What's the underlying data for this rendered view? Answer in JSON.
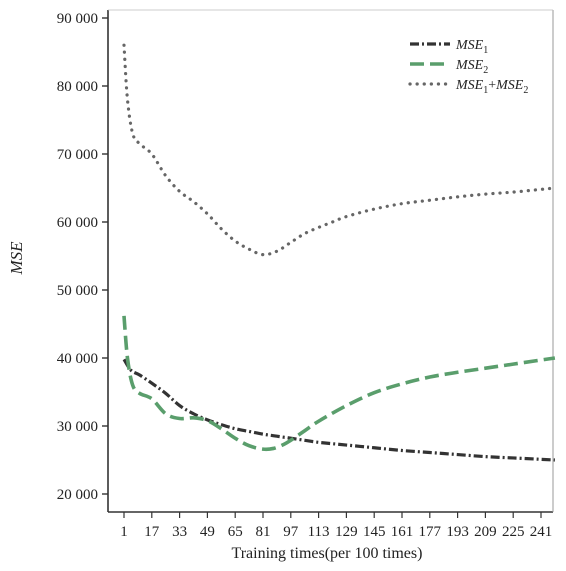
{
  "chart_data": {
    "type": "line",
    "xlabel": "Training times(per 100 times)",
    "ylabel": "MSE",
    "xlim": [
      0,
      249
    ],
    "ylim": [
      18000,
      92000
    ],
    "x_ticks": [
      1,
      17,
      33,
      49,
      65,
      81,
      97,
      113,
      129,
      145,
      161,
      177,
      193,
      209,
      225,
      241
    ],
    "y_ticks": [
      20000,
      30000,
      40000,
      50000,
      60000,
      70000,
      80000,
      90000
    ],
    "y_tick_labels": [
      "20 000",
      "30 000",
      "40 000",
      "50 000",
      "60 000",
      "70 000",
      "80 000",
      "90 000"
    ],
    "grid": false,
    "legend_position": "top-right",
    "series": [
      {
        "name": "MSE1",
        "legend_base": "MSE",
        "legend_sub": "1",
        "legend_sub2": "",
        "color": "#333333",
        "style": "dashdot",
        "x": [
          1,
          5,
          10,
          17,
          25,
          33,
          41,
          49,
          57,
          65,
          73,
          81,
          89,
          97,
          105,
          113,
          129,
          145,
          161,
          177,
          193,
          209,
          225,
          241,
          249
        ],
        "y": [
          39800,
          38200,
          37500,
          36300,
          34800,
          33000,
          31800,
          30900,
          30200,
          29600,
          29200,
          28800,
          28500,
          28200,
          27900,
          27600,
          27200,
          26800,
          26400,
          26100,
          25800,
          25500,
          25300,
          25100,
          25000
        ]
      },
      {
        "name": "MSE2",
        "legend_base": "MSE",
        "legend_sub": "2",
        "legend_sub2": "",
        "color": "#5a9e6c",
        "style": "dashed",
        "x": [
          1,
          3,
          6,
          10,
          17,
          25,
          33,
          41,
          49,
          57,
          65,
          73,
          81,
          87,
          93,
          97,
          105,
          113,
          129,
          145,
          161,
          177,
          193,
          209,
          225,
          241,
          249
        ],
        "y": [
          46200,
          40000,
          36000,
          34800,
          34000,
          31800,
          31100,
          31200,
          30800,
          29600,
          28200,
          27100,
          26600,
          26700,
          27300,
          27900,
          29300,
          30700,
          33000,
          34900,
          36200,
          37200,
          37900,
          38500,
          39100,
          39700,
          40000
        ]
      },
      {
        "name": "MSE1+MSE2",
        "legend_base": "MSE",
        "legend_sub": "1",
        "legend_sub2": "2",
        "color": "#666666",
        "style": "dotted",
        "x": [
          1,
          3,
          6,
          10,
          17,
          25,
          33,
          41,
          49,
          57,
          65,
          73,
          81,
          89,
          97,
          105,
          113,
          121,
          129,
          145,
          161,
          177,
          193,
          209,
          225,
          241,
          249
        ],
        "y": [
          86000,
          78000,
          73000,
          71500,
          70000,
          66800,
          64500,
          63000,
          61200,
          59000,
          57200,
          56000,
          55200,
          55700,
          57000,
          58300,
          59200,
          60000,
          60800,
          61900,
          62700,
          63200,
          63700,
          64100,
          64400,
          64800,
          65000
        ]
      }
    ]
  }
}
